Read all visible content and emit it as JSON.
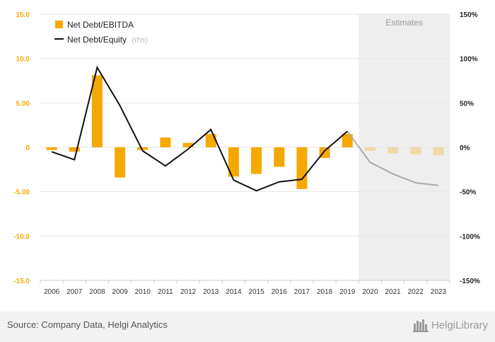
{
  "chart_data": {
    "type": "bar+line",
    "categories": [
      "2006",
      "2007",
      "2008",
      "2009",
      "2010",
      "2011",
      "2012",
      "2013",
      "2014",
      "2015",
      "2016",
      "2017",
      "2018",
      "2019",
      "2020",
      "2021",
      "2022",
      "2023"
    ],
    "estimate_start": "2020",
    "estimates_label": "Estimates",
    "y_left": {
      "min": -15,
      "max": 15,
      "ticks": [
        "15.0",
        "10.0",
        "5.00",
        "0",
        "-5.00",
        "-10.0",
        "-15.0"
      ]
    },
    "y_right": {
      "min": -150,
      "max": 150,
      "ticks": [
        "150%",
        "100%",
        "50%",
        "0%",
        "-50%",
        "-100%",
        "-150%"
      ]
    },
    "series": [
      {
        "name": "Net Debt/EBITDA",
        "kind": "bar",
        "axis": "left",
        "color": "#f5a800",
        "values": [
          -0.3,
          -0.5,
          8.1,
          -3.4,
          -0.3,
          1.1,
          0.5,
          1.5,
          -3.3,
          -3.0,
          -2.2,
          -4.7,
          -1.2,
          1.5,
          -0.4,
          -0.7,
          -0.8,
          -0.9
        ]
      },
      {
        "name": "Net Debt/Equity",
        "name_suffix": "(rhs)",
        "kind": "line",
        "axis": "right",
        "color": "#111111",
        "estimate_color": "#aaaaaa",
        "values": [
          -5,
          -14,
          90,
          47,
          -4,
          -21,
          -2,
          20,
          -37,
          -49,
          -39,
          -36,
          -4,
          18,
          -17,
          -30,
          -40,
          -43
        ]
      }
    ]
  },
  "footer": {
    "source": "Source: Company Data, Helgi Analytics",
    "logo_text": "HelgiLibrary"
  }
}
